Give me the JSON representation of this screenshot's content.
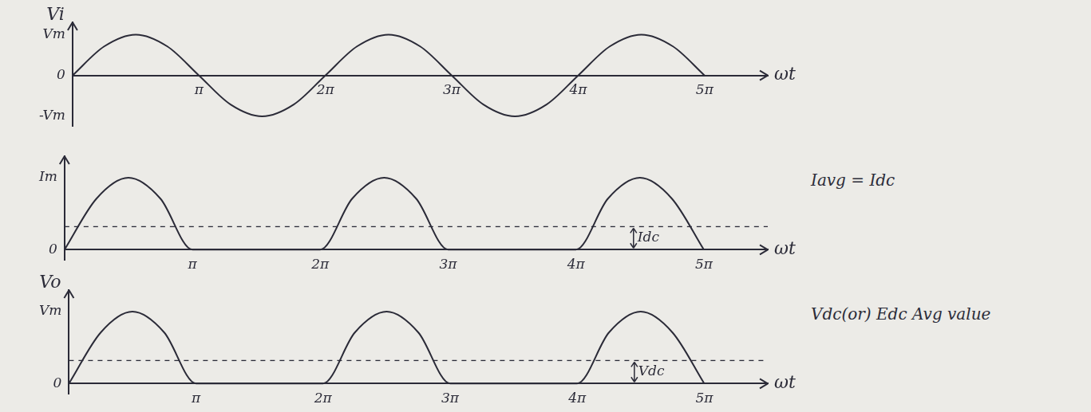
{
  "chart_data": [
    {
      "type": "line",
      "y_label": "Vi",
      "x_label": "ωt",
      "color": "#2b2b38",
      "x": [
        0,
        0.25,
        0.5,
        0.75,
        1,
        1.25,
        1.5,
        1.75,
        2,
        2.25,
        2.5,
        2.75,
        3,
        3.25,
        3.5,
        3.75,
        4,
        4.25,
        4.5,
        4.75,
        5
      ],
      "values": [
        0,
        0.71,
        1,
        0.71,
        0,
        -0.71,
        -1,
        -0.71,
        0,
        0.71,
        1,
        0.71,
        0,
        -0.71,
        -1,
        -0.71,
        0,
        0.71,
        1,
        0.71,
        0
      ],
      "xlim": [
        0,
        5.5
      ],
      "xticks": [
        {
          "value": 1,
          "label": "π"
        },
        {
          "value": 2,
          "label": "2π"
        },
        {
          "value": 3,
          "label": "3π"
        },
        {
          "value": 4,
          "label": "4π"
        },
        {
          "value": 5,
          "label": "5π"
        }
      ],
      "ylim": [
        -1.25,
        1.3
      ],
      "yticks": [
        {
          "value": -1,
          "label": "-Vm"
        },
        0,
        {
          "value": 1,
          "label": "Vm"
        }
      ],
      "grid": false
    },
    {
      "type": "line",
      "x_label": "ωt",
      "color": "#2b2b38",
      "x": [
        0,
        0.25,
        0.5,
        0.75,
        1,
        1.25,
        1.5,
        1.75,
        2,
        2.25,
        2.5,
        2.75,
        3,
        3.25,
        3.5,
        3.75,
        4,
        4.25,
        4.5,
        4.75,
        5
      ],
      "values": [
        0,
        0.71,
        1,
        0.71,
        0,
        0,
        0,
        0,
        0,
        0.71,
        1,
        0.71,
        0,
        0,
        0,
        0,
        0,
        0.71,
        1,
        0.71,
        0
      ],
      "average": 0.32,
      "average_label": "Idc",
      "annotation": "Iavg = Idc",
      "xlim": [
        0,
        5.5
      ],
      "xticks": [
        {
          "value": 1,
          "label": "π"
        },
        {
          "value": 2,
          "label": "2π"
        },
        {
          "value": 3,
          "label": "3π"
        },
        {
          "value": 4,
          "label": "4π"
        },
        {
          "value": 5,
          "label": "5π"
        }
      ],
      "ylim": [
        -0.15,
        1.3
      ],
      "yticks": [
        0,
        {
          "value": 1,
          "label": "Im"
        }
      ],
      "grid": false
    },
    {
      "type": "line",
      "y_label": "Vo",
      "x_label": "ωt",
      "color": "#2b2b38",
      "x": [
        0,
        0.25,
        0.5,
        0.75,
        1,
        1.25,
        1.5,
        1.75,
        2,
        2.25,
        2.5,
        2.75,
        3,
        3.25,
        3.5,
        3.75,
        4,
        4.25,
        4.5,
        4.75,
        5
      ],
      "values": [
        0,
        0.71,
        1,
        0.71,
        0,
        0,
        0,
        0,
        0,
        0.71,
        1,
        0.71,
        0,
        0,
        0,
        0,
        0,
        0.71,
        1,
        0.71,
        0
      ],
      "average": 0.32,
      "average_label": "Vdc",
      "annotation": "Vdc(or) Edc Avg value",
      "xlim": [
        0,
        5.5
      ],
      "xticks": [
        {
          "value": 1,
          "label": "π"
        },
        {
          "value": 2,
          "label": "2π"
        },
        {
          "value": 3,
          "label": "3π"
        },
        {
          "value": 4,
          "label": "4π"
        },
        {
          "value": 5,
          "label": "5π"
        }
      ],
      "ylim": [
        -0.15,
        1.3
      ],
      "yticks": [
        0,
        {
          "value": 1,
          "label": "Vm"
        }
      ],
      "grid": false
    }
  ]
}
